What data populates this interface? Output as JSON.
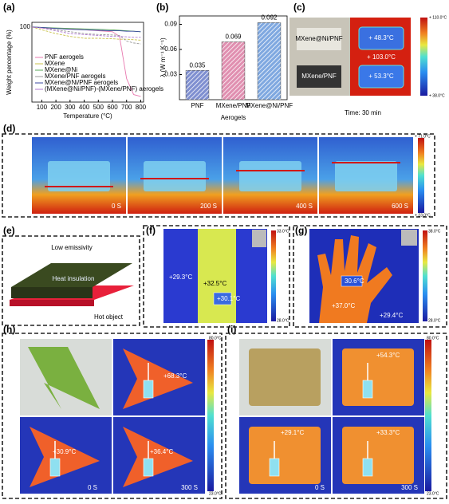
{
  "chart_data": [
    {
      "type": "line",
      "panel": "(a)",
      "xlabel": "Temperature (°C)",
      "ylabel": "Weight percentage (%)",
      "x": [
        30,
        100,
        200,
        300,
        400,
        500,
        600,
        650,
        700,
        750,
        800
      ],
      "xlim": [
        30,
        820
      ],
      "xticks": [
        100,
        200,
        300,
        400,
        500,
        600,
        700,
        800
      ],
      "ylim": [
        20,
        105
      ],
      "yticks": [
        100
      ],
      "legend": "lower-left",
      "series": [
        {
          "name": "PNF aerogels",
          "color": "#e87ab0",
          "values": [
            100,
            99,
            98.5,
            98,
            97,
            96,
            95,
            90,
            45,
            28,
            26
          ]
        },
        {
          "name": "MXene",
          "color": "#c9c24a",
          "values": [
            100,
            97,
            93,
            90,
            88,
            88,
            87.5,
            87,
            87,
            86.5,
            86
          ]
        },
        {
          "name": "MXene@Ni",
          "color": "#5aa85a",
          "values": [
            100,
            99.5,
            99,
            98.5,
            98,
            97.5,
            97,
            96.5,
            96,
            95.5,
            95
          ]
        },
        {
          "name": "MXene/PNF aerogels",
          "color": "#9a9a9a",
          "values": [
            100,
            99,
            97,
            95,
            93,
            92,
            91.5,
            91,
            85,
            83,
            82
          ]
        },
        {
          "name": "MXene@Ni/PNF aerogels",
          "color": "#3a4aa0",
          "values": [
            100,
            99.5,
            98.5,
            97.5,
            97,
            96.5,
            96,
            96,
            95.5,
            95.5,
            95
          ]
        },
        {
          "name": "(MXene@Ni/PNF)-(MXene/PNF) aerogels",
          "color": "#b07ad0",
          "values": [
            100,
            99,
            96,
            93,
            92,
            91,
            90,
            90,
            89.5,
            89,
            89
          ]
        }
      ]
    },
    {
      "type": "bar",
      "panel": "(b)",
      "xlabel": "Aerogels",
      "ylabel": "λ (W m⁻¹ K⁻¹)",
      "categories": [
        "PNF",
        "MXene/PNF",
        "MXene@Ni/PNF"
      ],
      "values": [
        0.035,
        0.069,
        0.092
      ],
      "colors": [
        "#7f8fd0",
        "#e08fb0",
        "#7fa8e0"
      ],
      "ylim": [
        0,
        0.1
      ],
      "yticks": [
        0.03,
        0.06,
        0.09
      ]
    }
  ],
  "c": {
    "panel": "(c)",
    "sample1": "MXene@Ni/PNF",
    "sample2": "MXene/PNF",
    "t1": "+ 48.3°C",
    "t2": "+ 103.0°C",
    "t3": "+ 53.3°C",
    "cmax": "+ 110.0°C",
    "cmin": "+ 38.0°C",
    "caption": "Time: 30 min"
  },
  "d": {
    "panel": "(d)",
    "times": [
      "0 S",
      "200 S",
      "400 S",
      "600 S"
    ],
    "cmax": "+ 71.0°C",
    "cmin": "+ 23.0°C"
  },
  "e": {
    "panel": "(e)",
    "top": "Low emissivity",
    "middle": "Heat insulation",
    "bottom": "Hot object"
  },
  "f": {
    "panel": "(f)",
    "t1": "+29.3°C",
    "t2": "+32.5°C",
    "t3": "+30.1°C",
    "cmax": "33.0°C",
    "cmin": "28.0°C"
  },
  "g": {
    "panel": "(g)",
    "t1": "30.6°C",
    "t2": "+37.0°C",
    "t3": "+29.4°C",
    "cmax": "38.0°C",
    "cmin": "28.0°C"
  },
  "h": {
    "panel": "(h)",
    "t1": "+68.3°C",
    "t2": "+30.9°C",
    "t3": "+36.4°C",
    "s0": "0 S",
    "s1": "300 S",
    "cmax": "80.0°C",
    "cmin": "23.0°C"
  },
  "i": {
    "panel": "(i)",
    "t1": "+54.3°C",
    "t2": "+29.1°C",
    "t3": "+33.3°C",
    "s0": "0 S",
    "s1": "300 S",
    "cmax": "80.0°C",
    "cmin": "23.0°C"
  }
}
